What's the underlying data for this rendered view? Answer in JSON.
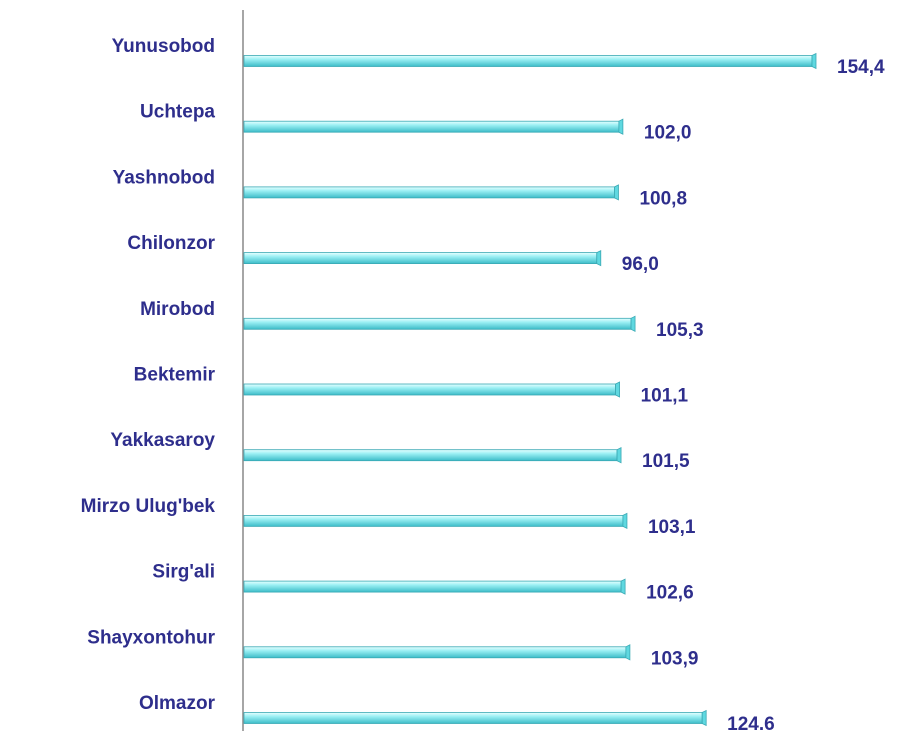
{
  "chart_data": {
    "type": "bar",
    "orientation": "horizontal",
    "categories": [
      "Yunusobod",
      "Uchtepa",
      "Yashnobod",
      "Chilonzor",
      "Mirobod",
      "Bektemir",
      "Yakkasaroy",
      "Mirzo Ulug'bek",
      "Sirg'ali",
      "Shayxontohur",
      "Olmazor"
    ],
    "values": [
      154.4,
      102.0,
      100.8,
      96.0,
      105.3,
      101.1,
      101.5,
      103.1,
      102.6,
      103.9,
      124.6
    ],
    "value_labels": [
      "154,4",
      "102,0",
      "100,8",
      "96,0",
      "105,3",
      "101,1",
      "101,5",
      "103,1",
      "102,6",
      "103,9",
      "124.6"
    ],
    "color": "#5fd8e0"
  }
}
